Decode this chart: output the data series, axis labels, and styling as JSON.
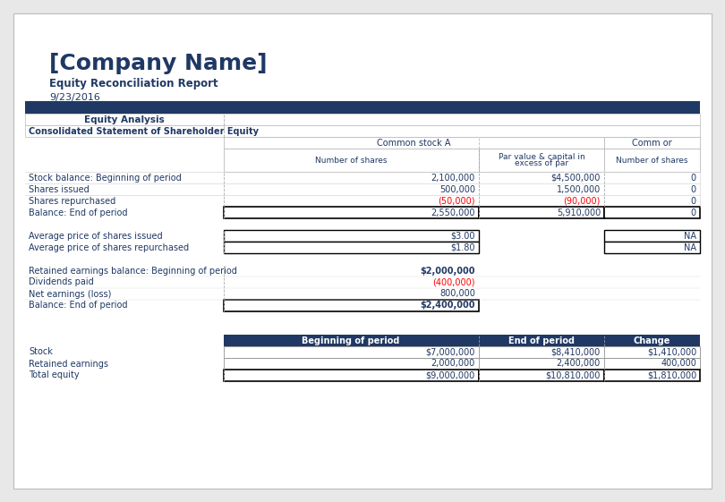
{
  "company_name": "[Company Name]",
  "subtitle": "Equity Reconciliation Report",
  "date": "9/23/2016",
  "dark_blue": "#1F3864",
  "red_color": "#FF0000",
  "background": "#FFFFFF",
  "outer_bg": "#E8E8E8",
  "border_color": "#000000",
  "eq_analysis_label": "Equity Analysis",
  "consolidated_label": "Consolidated Statement of Shareholder Equity",
  "common_stock_a_label": "Common stock A",
  "common_b_label": "Comm or",
  "num_shares_label": "Number of shares",
  "par_value_line1": "Par value & capital in",
  "par_value_line2": "excess of par",
  "num_shares_b_label": "Number of shares",
  "rows_data": [
    {
      "label": "Stock balance: Beginning of period",
      "shares_a": "2,100,000",
      "par_val": "$4,500,000",
      "shares_b": "0",
      "red_a": false,
      "red_b": false
    },
    {
      "label": "Shares issued",
      "shares_a": "500,000",
      "par_val": "1,500,000",
      "shares_b": "0",
      "red_a": false,
      "red_b": false
    },
    {
      "label": "Shares repurchased",
      "shares_a": "(50,000)",
      "par_val": "(90,000)",
      "shares_b": "0",
      "red_a": true,
      "red_b": true
    }
  ],
  "balance_row": {
    "label": "Balance: End of period",
    "shares_a": "2,550,000",
    "par_val": "5,910,000",
    "shares_b": "0"
  },
  "avg_rows": [
    {
      "label": "Average price of shares issued",
      "val_a": "$3.00",
      "val_b": "NA"
    },
    {
      "label": "Average price of shares repurchased",
      "val_a": "$1.80",
      "val_b": "NA"
    }
  ],
  "retained_rows": [
    {
      "label": "Retained earnings balance: Beginning of period",
      "val": "$2,000,000",
      "bold": true,
      "red": false
    },
    {
      "label": "Dividends paid",
      "val": "(400,000)",
      "bold": false,
      "red": true
    },
    {
      "label": "Net earnings (loss)",
      "val": "800,000",
      "bold": false,
      "red": false
    }
  ],
  "retained_balance": {
    "label": "Balance: End of period",
    "val": "$2,400,000"
  },
  "summary_headers": [
    "Beginning of period",
    "End of period",
    "Change"
  ],
  "summary_rows": [
    {
      "label": "Stock",
      "bop": "$7,000,000",
      "eop": "$8,410,000",
      "change": "$1,410,000",
      "bold": false
    },
    {
      "label": "Retained earnings",
      "bop": "2,000,000",
      "eop": "2,400,000",
      "change": "400,000",
      "bold": false
    },
    {
      "label": "Total equity",
      "bop": "$9,000,000",
      "eop": "$10,810,000",
      "change": "$1,810,000",
      "bold": false
    }
  ]
}
